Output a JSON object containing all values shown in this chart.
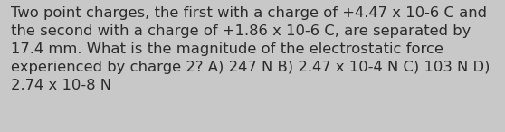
{
  "text": "Two point charges, the first with a charge of +4.47 x 10-6 C and\nthe second with a charge of +1.86 x 10-6 C, are separated by\n17.4 mm. What is the magnitude of the electrostatic force\nexperienced by charge 2? A) 247 N B) 2.47 x 10-4 N C) 103 N D)\n2.74 x 10-8 N",
  "background_color": "#c8c8c8",
  "text_color": "#2b2b2b",
  "font_size": 11.8,
  "fig_width": 5.58,
  "fig_height": 1.46,
  "dpi": 100
}
